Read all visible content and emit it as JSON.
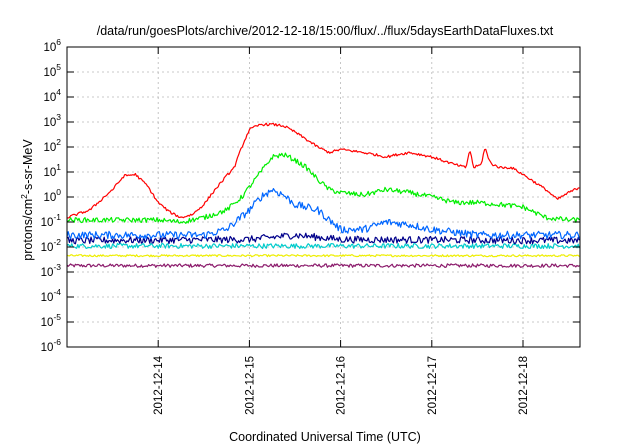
{
  "chart_data": {
    "type": "line",
    "title": "/data/run/goesPlots/archive/2012-12-18/15:00/flux/../flux/5daysEarthDataFluxes.txt",
    "xlabel": "Coordinated Universal Time (UTC)",
    "ylabel": {
      "base": "protons/cm",
      "sup": "2",
      "rest": "-s-sr-MeV"
    },
    "yscale": "log",
    "ylim": [
      1e-06,
      1000000.0
    ],
    "xlim": [
      "2012-12-13T00:00",
      "2012-12-18T15:00"
    ],
    "grid": true,
    "legend": "none",
    "xticks": [
      "2012-12-14",
      "2012-12-15",
      "2012-12-16",
      "2012-12-17",
      "2012-12-18"
    ],
    "yticks": [
      {
        "value": 1e-06,
        "base": "10",
        "exp": "-6"
      },
      {
        "value": 1e-05,
        "base": "10",
        "exp": "-5"
      },
      {
        "value": 0.0001,
        "base": "10",
        "exp": "-4"
      },
      {
        "value": 0.001,
        "base": "10",
        "exp": "-3"
      },
      {
        "value": 0.01,
        "base": "10",
        "exp": "-2"
      },
      {
        "value": 0.1,
        "base": "10",
        "exp": "-1"
      },
      {
        "value": 1,
        "base": "10",
        "exp": "0"
      },
      {
        "value": 10,
        "base": "10",
        "exp": "1"
      },
      {
        "value": 100,
        "base": "10",
        "exp": "2"
      },
      {
        "value": 1000,
        "base": "10",
        "exp": "3"
      },
      {
        "value": 10000,
        "base": "10",
        "exp": "4"
      },
      {
        "value": 100000,
        "base": "10",
        "exp": "5"
      },
      {
        "value": 1000000,
        "base": "10",
        "exp": "6"
      }
    ],
    "series": [
      {
        "color": "#ff0000",
        "noise": 0.05,
        "x": [
          "2012-12-13T00:00",
          "2012-12-13T06:00",
          "2012-12-13T12:00",
          "2012-12-13T15:00",
          "2012-12-13T18:00",
          "2012-12-13T21:00",
          "2012-12-14T00:00",
          "2012-12-14T03:00",
          "2012-12-14T06:00",
          "2012-12-14T09:00",
          "2012-12-14T12:00",
          "2012-12-14T15:00",
          "2012-12-14T18:00",
          "2012-12-14T20:00",
          "2012-12-14T22:00",
          "2012-12-15T00:00",
          "2012-12-15T03:00",
          "2012-12-15T06:00",
          "2012-12-15T09:00",
          "2012-12-15T12:00",
          "2012-12-15T15:00",
          "2012-12-15T18:00",
          "2012-12-15T21:00",
          "2012-12-16T00:00",
          "2012-12-16T03:00",
          "2012-12-16T06:00",
          "2012-12-16T09:00",
          "2012-12-16T12:00",
          "2012-12-16T15:00",
          "2012-12-16T18:00",
          "2012-12-16T21:00",
          "2012-12-17T00:00",
          "2012-12-17T06:00",
          "2012-12-17T09:00",
          "2012-12-17T10:00",
          "2012-12-17T11:00",
          "2012-12-17T13:00",
          "2012-12-17T14:00",
          "2012-12-17T15:00",
          "2012-12-17T16:00",
          "2012-12-17T18:00",
          "2012-12-17T21:00",
          "2012-12-18T00:00",
          "2012-12-18T03:00",
          "2012-12-18T06:00",
          "2012-12-18T09:00",
          "2012-12-18T12:00",
          "2012-12-18T15:00"
        ],
        "y": [
          0.15,
          0.3,
          2,
          7,
          8,
          3,
          0.6,
          0.25,
          0.15,
          0.2,
          0.5,
          2,
          7,
          15,
          100,
          500,
          800,
          800,
          700,
          400,
          200,
          100,
          60,
          80,
          70,
          60,
          50,
          40,
          50,
          60,
          50,
          40,
          20,
          15,
          80,
          15,
          20,
          100,
          30,
          20,
          15,
          15,
          8,
          4,
          2,
          0.8,
          1.5,
          2.5
        ]
      },
      {
        "color": "#00ee00",
        "noise": 0.1,
        "x": [
          "2012-12-13T00:00",
          "2012-12-14T00:00",
          "2012-12-14T06:00",
          "2012-12-14T12:00",
          "2012-12-14T18:00",
          "2012-12-14T22:00",
          "2012-12-15T03:00",
          "2012-12-15T06:00",
          "2012-12-15T09:00",
          "2012-12-15T12:00",
          "2012-12-15T15:00",
          "2012-12-15T18:00",
          "2012-12-15T21:00",
          "2012-12-16T00:00",
          "2012-12-16T06:00",
          "2012-12-16T12:00",
          "2012-12-16T18:00",
          "2012-12-17T00:00",
          "2012-12-17T06:00",
          "2012-12-17T12:00",
          "2012-12-17T18:00",
          "2012-12-18T00:00",
          "2012-12-18T06:00",
          "2012-12-18T12:00",
          "2012-12-18T15:00"
        ],
        "y": [
          0.12,
          0.12,
          0.1,
          0.15,
          0.3,
          1,
          10,
          40,
          50,
          30,
          15,
          5,
          2,
          1.5,
          1.2,
          2,
          1.5,
          1,
          0.6,
          0.6,
          0.5,
          0.4,
          0.15,
          0.12,
          0.12
        ]
      },
      {
        "color": "#0066ff",
        "noise": 0.15,
        "x": [
          "2012-12-13T00:00",
          "2012-12-14T00:00",
          "2012-12-14T12:00",
          "2012-12-14T18:00",
          "2012-12-15T00:00",
          "2012-12-15T03:00",
          "2012-12-15T06:00",
          "2012-12-15T09:00",
          "2012-12-15T12:00",
          "2012-12-15T18:00",
          "2012-12-16T00:00",
          "2012-12-16T06:00",
          "2012-12-16T12:00",
          "2012-12-16T18:00",
          "2012-12-17T00:00",
          "2012-12-17T12:00",
          "2012-12-18T00:00",
          "2012-12-18T15:00"
        ],
        "y": [
          0.03,
          0.03,
          0.03,
          0.05,
          0.3,
          1,
          2,
          1.2,
          0.5,
          0.3,
          0.05,
          0.05,
          0.1,
          0.08,
          0.05,
          0.03,
          0.03,
          0.03
        ]
      },
      {
        "color": "#00008b",
        "noise": 0.14,
        "x": [
          "2012-12-13T00:00",
          "2012-12-15T00:00",
          "2012-12-15T12:00",
          "2012-12-16T00:00",
          "2012-12-18T15:00"
        ],
        "y": [
          0.018,
          0.02,
          0.03,
          0.02,
          0.018
        ]
      },
      {
        "color": "#00cccc",
        "noise": 0.1,
        "x": [
          "2012-12-13T00:00",
          "2012-12-18T15:00"
        ],
        "y": [
          0.011,
          0.011
        ]
      },
      {
        "color": "#eeee00",
        "noise": 0.04,
        "x": [
          "2012-12-13T00:00",
          "2012-12-18T15:00"
        ],
        "y": [
          0.0045,
          0.0045
        ]
      },
      {
        "color": "#8b1a6b",
        "noise": 0.07,
        "x": [
          "2012-12-13T00:00",
          "2012-12-18T15:00"
        ],
        "y": [
          0.0018,
          0.0018
        ]
      }
    ]
  }
}
